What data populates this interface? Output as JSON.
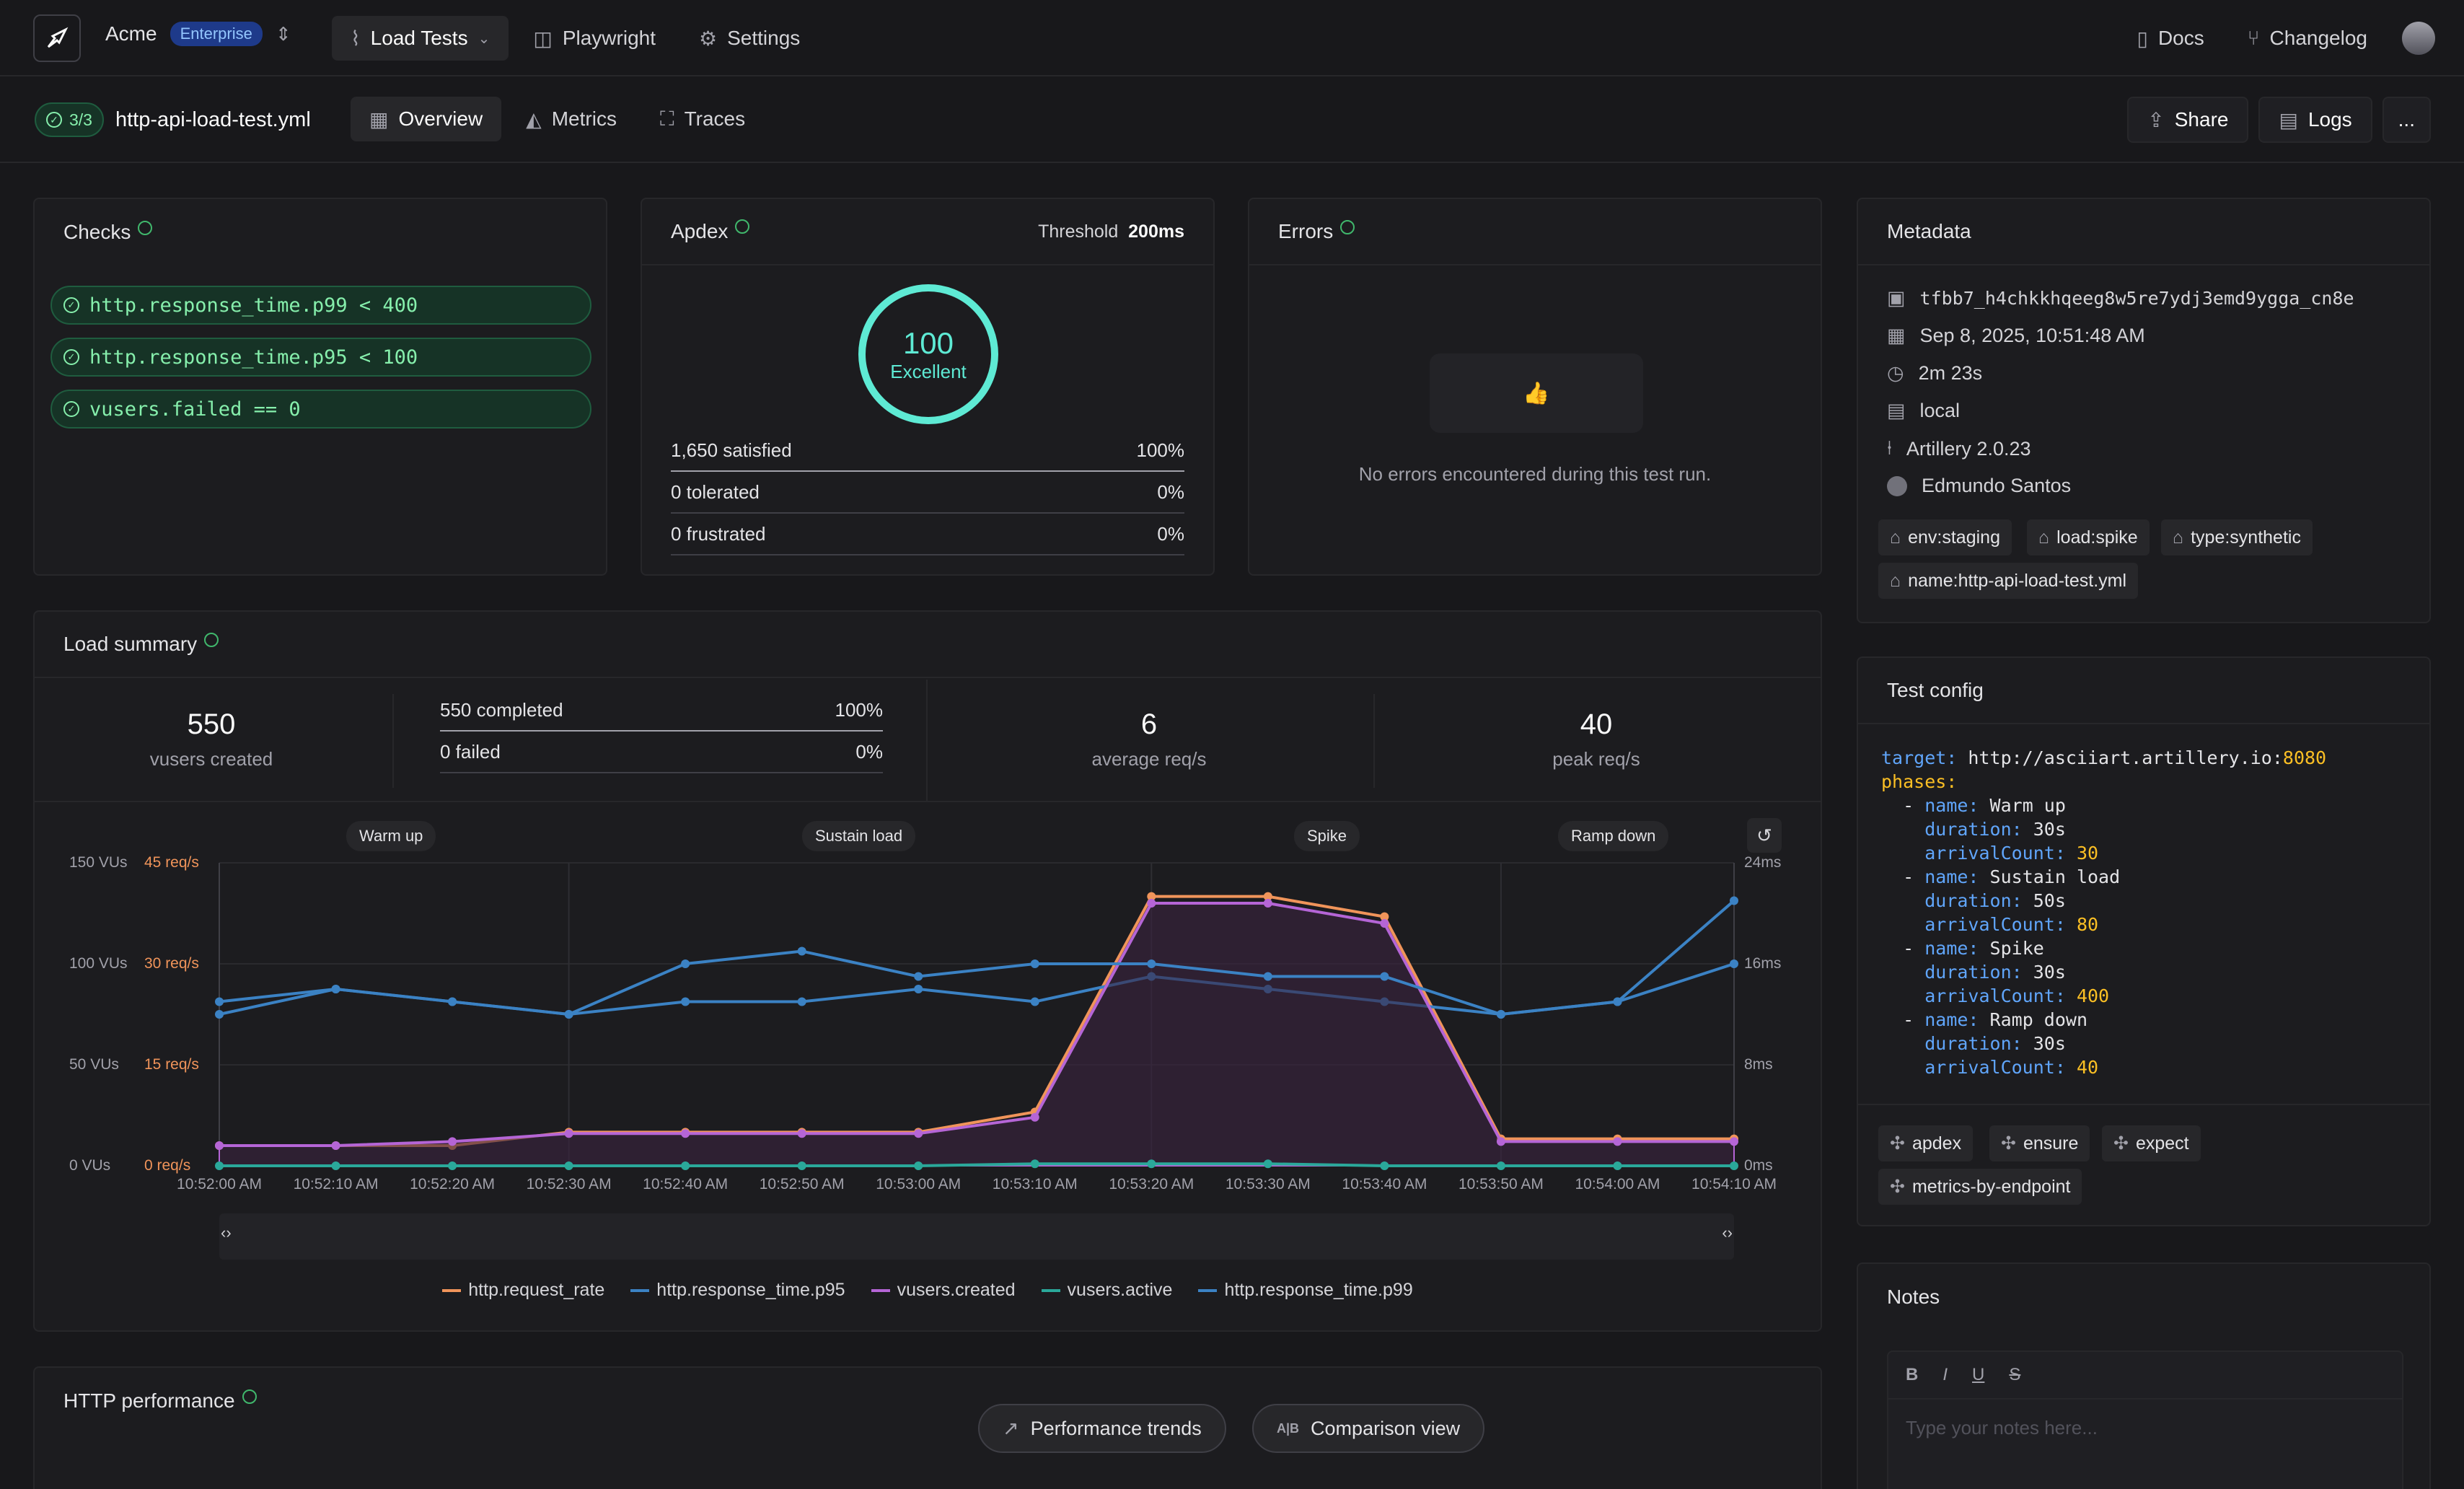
{
  "topbar": {
    "org": "Acme",
    "plan": "Enterprise",
    "nav": [
      "Load Tests",
      "Playwright",
      "Settings"
    ],
    "right": [
      "Docs",
      "Changelog"
    ]
  },
  "subbar": {
    "checks_badge": "3/3",
    "file": "http-api-load-test.yml",
    "tabs": [
      "Overview",
      "Metrics",
      "Traces"
    ],
    "share": "Share",
    "logs": "Logs",
    "more": "..."
  },
  "checks": {
    "title": "Checks",
    "items": [
      "http.response_time.p99 < 400",
      "http.response_time.p95 < 100",
      "vusers.failed == 0"
    ]
  },
  "apdex": {
    "title": "Apdex",
    "threshold_label": "Threshold",
    "threshold_value": "200ms",
    "score": "100",
    "rating": "Excellent",
    "rows": [
      {
        "label": "1,650 satisfied",
        "pct": "100%"
      },
      {
        "label": "0 tolerated",
        "pct": "0%"
      },
      {
        "label": "0 frustrated",
        "pct": "0%"
      }
    ]
  },
  "errors": {
    "title": "Errors",
    "empty": "No errors encountered during this test run."
  },
  "metadata": {
    "title": "Metadata",
    "id": "tfbb7_h4chkkhqeeg8w5re7ydj3emd9ygga_cn8e",
    "date": "Sep 8, 2025, 10:51:48 AM",
    "duration": "2m 23s",
    "location": "local",
    "version": "Artillery 2.0.23",
    "user": "Edmundo Santos",
    "tags": [
      "env:staging",
      "load:spike",
      "type:synthetic",
      "name:http-api-load-test.yml"
    ]
  },
  "load_summary": {
    "title": "Load summary",
    "vusers": "550",
    "vusers_label": "vusers created",
    "completed": "550 completed",
    "completed_pct": "100%",
    "failed": "0 failed",
    "failed_pct": "0%",
    "avg": "6",
    "avg_label": "average req/s",
    "peak": "40",
    "peak_label": "peak req/s"
  },
  "chart_data": {
    "type": "line",
    "phases": [
      "Warm up",
      "Sustain load",
      "Spike",
      "Ramp down"
    ],
    "x": [
      "10:52:00 AM",
      "10:52:10 AM",
      "10:52:20 AM",
      "10:52:30 AM",
      "10:52:40 AM",
      "10:52:50 AM",
      "10:53:00 AM",
      "10:53:10 AM",
      "10:53:20 AM",
      "10:53:30 AM",
      "10:53:40 AM",
      "10:53:50 AM",
      "10:54:00 AM",
      "10:54:10 AM"
    ],
    "y_left_vus": [
      "150 VUs",
      "100 VUs",
      "50 VUs",
      "0 VUs"
    ],
    "y_left_rate": [
      "45 req/s",
      "30 req/s",
      "15 req/s",
      "0 req/s"
    ],
    "y_right": [
      "24ms",
      "16ms",
      "8ms",
      "0ms"
    ],
    "series": [
      {
        "name": "http.request_rate",
        "color": "#f0945a",
        "values": [
          3,
          3,
          3,
          5,
          5,
          5,
          5,
          8,
          40,
          40,
          37,
          4,
          4,
          4
        ]
      },
      {
        "name": "http.response_time.p95",
        "color": "#3b82c4",
        "values": [
          12,
          14,
          13,
          12,
          13,
          13,
          14,
          13,
          15,
          14,
          13,
          12,
          13,
          16
        ]
      },
      {
        "name": "vusers.created",
        "color": "#b565d6",
        "values": [
          10,
          10,
          12,
          16,
          16,
          16,
          16,
          24,
          130,
          130,
          120,
          12,
          12,
          12
        ]
      },
      {
        "name": "vusers.active",
        "color": "#2aa89a",
        "values": [
          0,
          0,
          0,
          0,
          0,
          0,
          0,
          1,
          1,
          1,
          0,
          0,
          0,
          0
        ]
      },
      {
        "name": "http.response_time.p99",
        "color": "#3b82c4",
        "values": [
          13,
          14,
          13,
          12,
          16,
          17,
          15,
          16,
          16,
          15,
          15,
          12,
          13,
          21
        ]
      }
    ]
  },
  "test_config": {
    "title": "Test config",
    "plugins": [
      "apdex",
      "ensure",
      "expect",
      "metrics-by-endpoint"
    ],
    "target_key": "target:",
    "target_url": "http://asciiart.artillery.io:",
    "target_port": "8080",
    "phases_key": "phases:",
    "phases": [
      {
        "name": "Warm up",
        "duration": "30s",
        "arrival": "30"
      },
      {
        "name": "Sustain load",
        "duration": "50s",
        "arrival": "80"
      },
      {
        "name": "Spike",
        "duration": "30s",
        "arrival": "400"
      },
      {
        "name": "Ramp down",
        "duration": "30s",
        "arrival": "40"
      }
    ]
  },
  "notes": {
    "title": "Notes",
    "placeholder": "Type your notes here...",
    "tools": [
      "B",
      "I",
      "U",
      "S"
    ]
  },
  "http_perf": {
    "title": "HTTP performance"
  },
  "floating": {
    "trends": "Performance trends",
    "compare": "Comparison view",
    "ab": "A|B"
  }
}
